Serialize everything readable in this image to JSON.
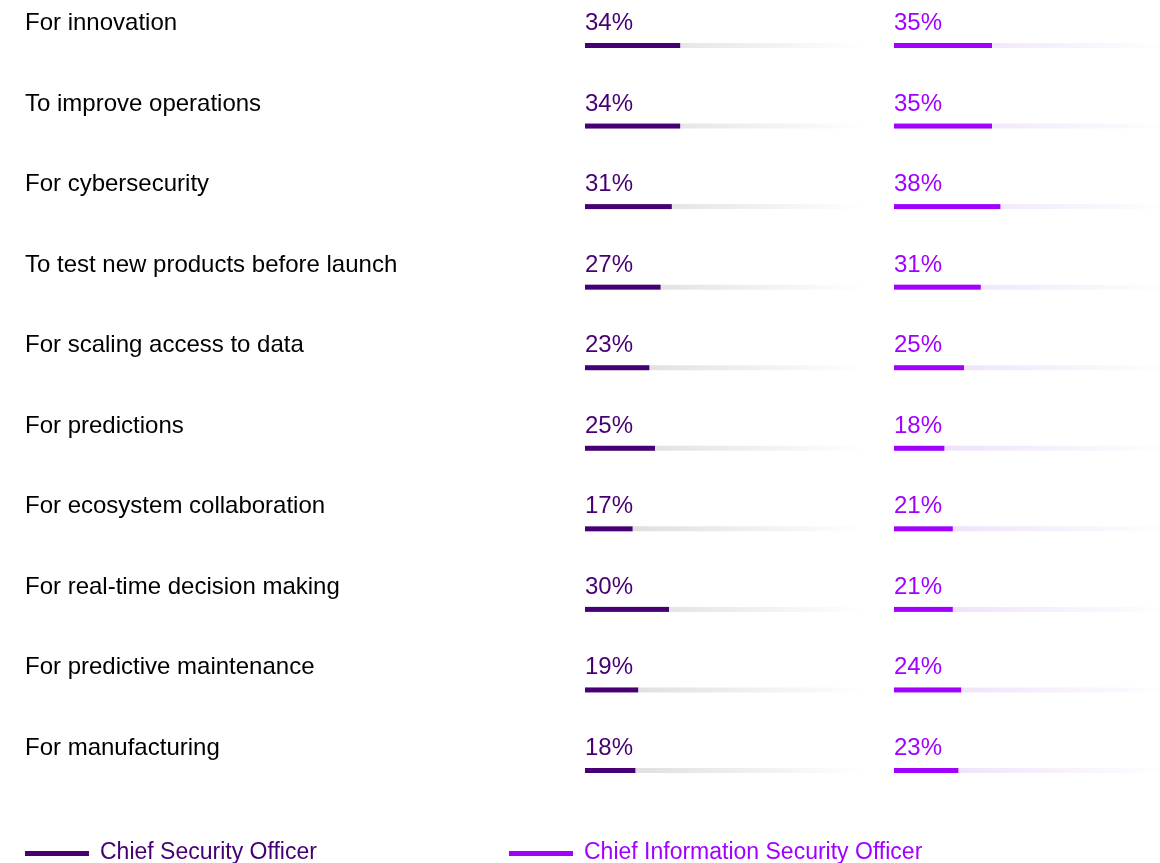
{
  "chart_data": [
    {
      "type": "bar",
      "orientation": "horizontal",
      "categories": [
        "For innovation",
        "To improve operations",
        "For cybersecurity",
        "To test new products before launch",
        "For scaling access to data",
        "For predictions",
        "For ecosystem collaboration",
        "For real-time decision making",
        "For predictive maintenance",
        "For manufacturing"
      ],
      "series": [
        {
          "name": "Chief Security Officer",
          "color": "#460073",
          "values": [
            34,
            34,
            31,
            27,
            23,
            25,
            17,
            30,
            19,
            18
          ],
          "value_labels": [
            "34%",
            "34%",
            "31%",
            "27%",
            "23%",
            "25%",
            "17%",
            "30%",
            "19%",
            "18%"
          ]
        }
      ],
      "xlim": [
        0,
        100
      ],
      "tick_labels": "y",
      "legend": "bottom"
    },
    {
      "type": "bar",
      "orientation": "horizontal",
      "categories": [
        null,
        null,
        null,
        null,
        null,
        null,
        null,
        null,
        null,
        null
      ],
      "series": [
        {
          "name": "Chief Information Security Officer",
          "color": "#a100ff",
          "values": [
            35,
            35,
            38,
            31,
            25,
            18,
            21,
            21,
            24,
            23
          ],
          "value_labels": [
            "35%",
            "35%",
            "38%",
            "31%",
            "25%",
            "18%",
            "21%",
            "21%",
            "24%",
            "23%"
          ]
        }
      ],
      "xlim": [
        0,
        100
      ],
      "tick_labels": false,
      "legend": "bottom"
    }
  ]
}
